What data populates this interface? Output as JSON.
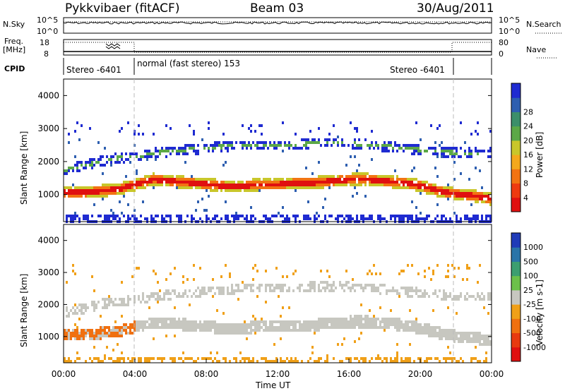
{
  "header": {
    "station": "Pykkvibaer (fitACF)",
    "beam": "Beam 03",
    "date": "30/Aug/2011"
  },
  "strips": {
    "nsky_label": "N.Sky",
    "nsky_ticks": [
      "10^5",
      "10^0"
    ],
    "nsearch_label": "N.Search",
    "nsearch_ticks": [
      "10^5",
      "10^0"
    ],
    "freq_label_top": "Freq.",
    "freq_label_bottom": "[MHz]",
    "freq_ticks": [
      "18",
      "8"
    ],
    "nave_label": "Nave",
    "nave_ticks": [
      "80",
      "0"
    ],
    "cpid_label": "CPID",
    "cpid_segments": [
      {
        "text": "Stereo -6401",
        "start_h": 0,
        "end_h": 4
      },
      {
        "text": "normal (fast stereo) 153",
        "start_h": 4,
        "end_h": 22
      },
      {
        "text": "Stereo -6401",
        "start_h": 22,
        "end_h": 24
      }
    ]
  },
  "chart_data": [
    {
      "type": "heatmap",
      "name": "power",
      "ylabel": "Slant Range [km]",
      "y_ticks": [
        "1000",
        "2000",
        "3000",
        "4000"
      ],
      "ylim": [
        180,
        4500
      ],
      "xlim": [
        0,
        24
      ],
      "colorbar": {
        "label": "Power [dB]",
        "ticks": [
          "4",
          "8",
          "12",
          "16",
          "20",
          "24",
          "28"
        ],
        "colors": [
          "#1f2bd1",
          "#2e5fb0",
          "#3c8f6a",
          "#5ca847",
          "#c9c62a",
          "#f4a81c",
          "#f27312",
          "#ee3a10",
          "#e01010"
        ]
      },
      "bands": [
        {
          "desc": "main echo",
          "center_km": [
            1100,
            1100,
            1150,
            1200,
            1350,
            1500,
            1450,
            1400,
            1350,
            1300,
            1300,
            1350,
            1350,
            1400,
            1400,
            1450,
            1500,
            1500,
            1450,
            1400,
            1300,
            1150,
            1050,
            1000,
            900
          ]
        },
        {
          "desc": "upper echo",
          "center_km": [
            1800,
            1900,
            2050,
            2150,
            2200,
            2300,
            2350,
            2400,
            2450,
            2500,
            2550,
            2550,
            2550,
            2550,
            2600,
            2600,
            2600,
            2550,
            2500,
            2450,
            2400,
            2350,
            2300,
            2300,
            2300
          ]
        }
      ]
    },
    {
      "type": "heatmap",
      "name": "velocity",
      "ylabel": "Slant Range [km]",
      "y_ticks": [
        "1000",
        "2000",
        "3000",
        "4000"
      ],
      "ylim": [
        180,
        4500
      ],
      "xlim": [
        0,
        24
      ],
      "colorbar": {
        "label": "Velocity [m s-1]",
        "ticks": [
          "1000",
          "500",
          "100",
          "25",
          "-25",
          "-100",
          "-500",
          "-1000"
        ],
        "colors": [
          "#1f3bb8",
          "#2a74a8",
          "#3c9e70",
          "#6cc04a",
          "#c7c7c0",
          "#f0a018",
          "#f07010",
          "#e83a10",
          "#e01010"
        ]
      }
    }
  ],
  "x_axis": {
    "ticks": [
      "00:00",
      "04:00",
      "08:00",
      "12:00",
      "16:00",
      "20:00",
      "00:00"
    ],
    "label": "Time UT"
  }
}
